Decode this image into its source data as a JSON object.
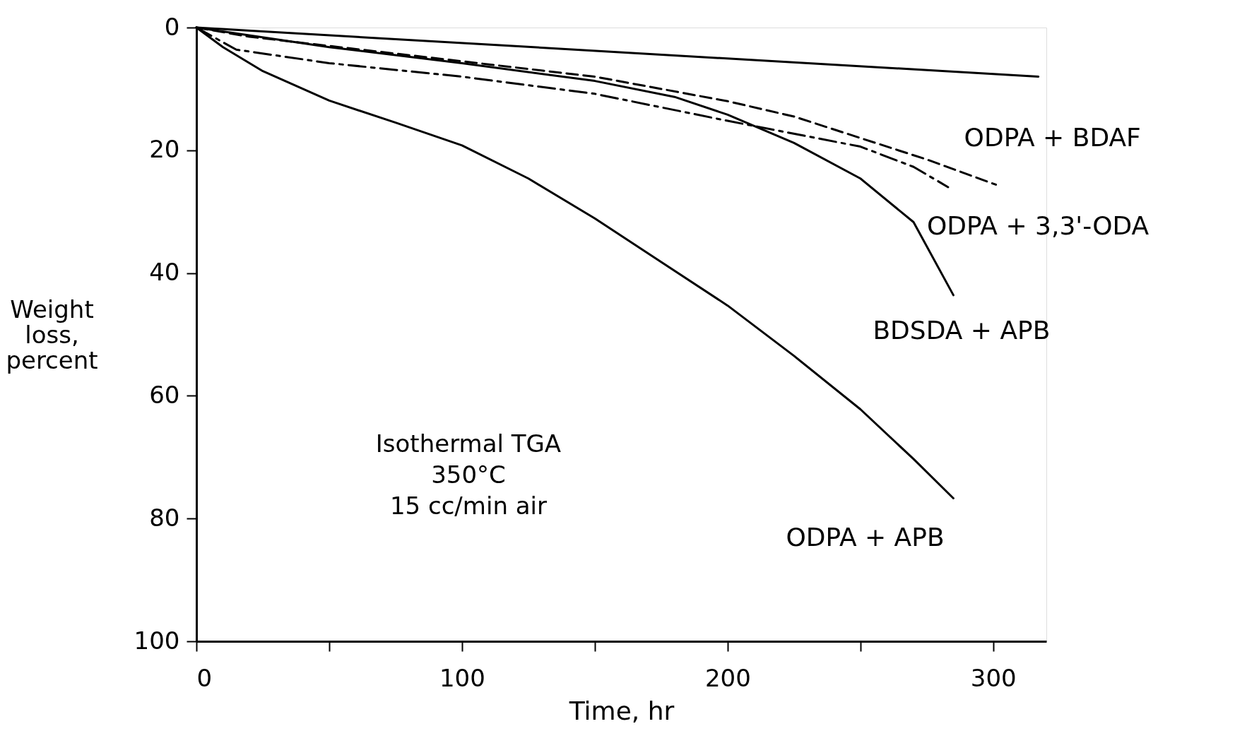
{
  "chart_data": {
    "type": "line",
    "xlabel": "Time, hr",
    "ylabel": "Weight\nloss,\npercent",
    "xlim": [
      0,
      320
    ],
    "xticks": [
      0,
      {
        "value": 50,
        "label": null
      },
      100,
      {
        "value": 150,
        "label": null
      },
      200,
      {
        "value": 250,
        "label": null
      },
      300
    ],
    "ylim": [
      100,
      0
    ],
    "yticks": [
      0,
      20,
      40,
      60,
      80,
      100
    ],
    "grid": false,
    "marker": "none",
    "annotations": [
      "Isothermal TGA",
      "350°C",
      "15 cc/min air"
    ],
    "series": [
      {
        "color": "#000000",
        "line_style": "solid",
        "x": [
          0,
          317
        ],
        "values": [
          0,
          8
        ]
      },
      {
        "name": "ODPA + BDAF",
        "color": "#000000",
        "line_style": "dashed",
        "x": [
          0,
          20,
          50,
          100,
          150,
          200,
          225,
          250,
          275,
          301
        ],
        "values": [
          0,
          1.5,
          3,
          5.5,
          8,
          12,
          14.5,
          18,
          21.5,
          25.6
        ]
      },
      {
        "name": "ODPA + 3,3'-ODA",
        "color": "#000000",
        "line_style": "dashdot",
        "x": [
          0,
          15,
          50,
          100,
          150,
          200,
          250,
          270,
          283
        ],
        "values": [
          0,
          3.6,
          5.8,
          8,
          10.8,
          15.2,
          19.4,
          22.7,
          26
        ]
      },
      {
        "name": "BDSDA + APB",
        "color": "#000000",
        "line_style": "solid",
        "x": [
          0,
          50,
          100,
          150,
          180,
          200,
          225,
          250,
          270,
          285
        ],
        "values": [
          0,
          3.2,
          5.8,
          8.7,
          11.3,
          14.2,
          18.8,
          24.6,
          31.7,
          43.6
        ]
      },
      {
        "name": "ODPA + APB",
        "color": "#000000",
        "line_style": "solid",
        "x": [
          0,
          10,
          25,
          50,
          75,
          100,
          125,
          150,
          175,
          200,
          225,
          250,
          270,
          285
        ],
        "values": [
          0,
          3.2,
          7.1,
          11.9,
          15.5,
          19.2,
          24.6,
          31.1,
          38.2,
          45.3,
          53.5,
          62.2,
          70.3,
          76.7
        ]
      }
    ]
  }
}
